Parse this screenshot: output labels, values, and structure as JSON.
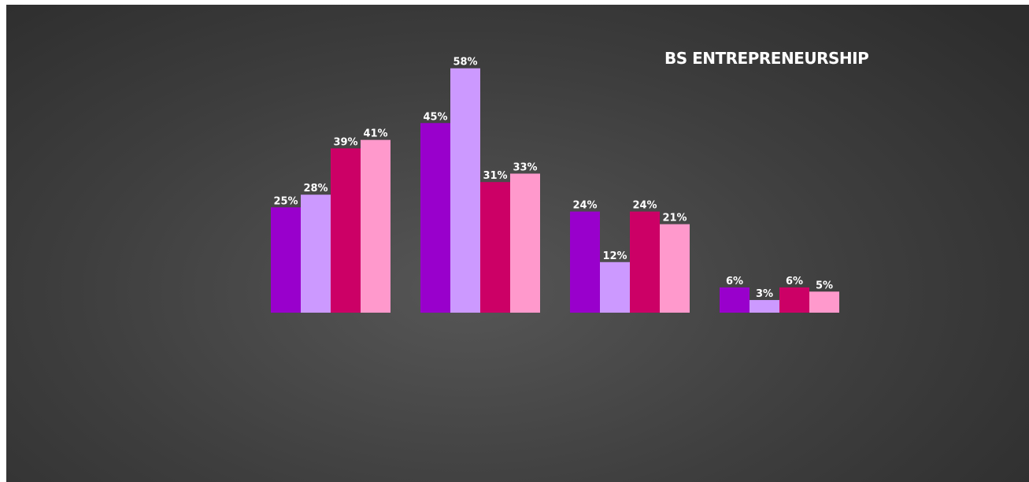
{
  "chart_data": {
    "type": "bar",
    "title": "BS ENTREPRENEURSHIP",
    "categories": [
      "",
      "",
      "",
      ""
    ],
    "series": [
      {
        "values": [
          25,
          45,
          24,
          6
        ],
        "color": "#9900cc",
        "labels": [
          "25%",
          "45%",
          "24%",
          "6%"
        ]
      },
      {
        "values": [
          28,
          58,
          12,
          3
        ],
        "color": "#cc99ff",
        "labels": [
          "28%",
          "58%",
          "12%",
          "3%"
        ]
      },
      {
        "values": [
          39,
          31,
          24,
          6
        ],
        "color": "#cc0066",
        "labels": [
          "39%",
          "31%",
          "24%",
          "6%"
        ]
      },
      {
        "values": [
          41,
          33,
          21,
          5
        ],
        "color": "#ff99cc",
        "labels": [
          "41%",
          "33%",
          "21%",
          "5%"
        ]
      }
    ],
    "ylim": [
      0,
      60
    ],
    "grid": false,
    "legend": false,
    "background": "#404040"
  }
}
